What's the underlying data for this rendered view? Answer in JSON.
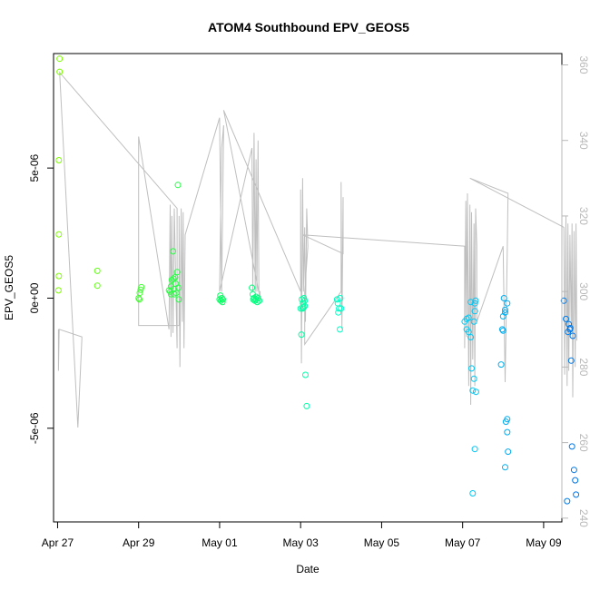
{
  "chart_data": {
    "type": "scatter",
    "title": "ATOM4 Southbound EPV_GEOS5",
    "xlabel": "Date",
    "ylabel": "EPV_GEOS5",
    "xlim": [
      -0.1,
      12.45
    ],
    "ylim": [
      -8.6e-06,
      9.4e-06
    ],
    "x_unit": "days since Apr 27",
    "x_ticks": [
      {
        "value": 0,
        "label": "Apr 27"
      },
      {
        "value": 2,
        "label": "Apr 29"
      },
      {
        "value": 4,
        "label": "May 01"
      },
      {
        "value": 6,
        "label": "May 03"
      },
      {
        "value": 8,
        "label": "May 05"
      },
      {
        "value": 10,
        "label": "May 07"
      },
      {
        "value": 12,
        "label": "May 09"
      }
    ],
    "y_ticks": [
      {
        "value": -5e-06,
        "label": "-5e-06"
      },
      {
        "value": 0,
        "label": "0e+00"
      },
      {
        "value": 5e-06,
        "label": "5e-06"
      }
    ],
    "right_axis": {
      "label": "",
      "lim": [
        239,
        363
      ],
      "ticks": [
        240,
        260,
        280,
        300,
        320,
        340,
        360
      ]
    },
    "color_gradient": [
      "#7fff00",
      "#00ff66",
      "#00ffff",
      "#0073e6"
    ],
    "series": [
      {
        "name": "EPV_GEOS5",
        "points": [
          [
            0.05,
            9.2e-06
          ],
          [
            0.05,
            8.7e-06
          ],
          [
            0.03,
            5.3e-06
          ],
          [
            0.03,
            2.45e-06
          ],
          [
            0.03,
            8.5e-07
          ],
          [
            0.02,
            3e-07
          ],
          [
            0.98,
            1.05e-06
          ],
          [
            0.98,
            4.8e-07
          ],
          [
            2.0,
            0
          ],
          [
            2.03,
            2e-07
          ],
          [
            2.05,
            3.2e-07
          ],
          [
            2.07,
            4.2e-07
          ],
          [
            2.02,
            -5e-08
          ],
          [
            2.75,
            3e-07
          ],
          [
            2.78,
            2.5e-07
          ],
          [
            2.8,
            4.5e-07
          ],
          [
            2.82,
            7e-07
          ],
          [
            2.85,
            1.8e-06
          ],
          [
            2.87,
            3.5e-07
          ],
          [
            2.88,
            1.5e-07
          ],
          [
            2.9,
            8e-07
          ],
          [
            2.92,
            5.5e-07
          ],
          [
            2.93,
            2e-07
          ],
          [
            2.95,
            1e-06
          ],
          [
            2.97,
            4.35e-06
          ],
          [
            2.98,
            4e-07
          ],
          [
            2.99,
            -5e-08
          ],
          [
            2.86,
            7.5e-07
          ],
          [
            2.8,
            1.5e-07
          ],
          [
            4.0,
            -5e-08
          ],
          [
            4.03,
            -1e-07
          ],
          [
            4.05,
            0
          ],
          [
            4.07,
            -1.5e-07
          ],
          [
            4.02,
            1e-07
          ],
          [
            4.08,
            -5e-08
          ],
          [
            4.8,
            4e-07
          ],
          [
            4.82,
            1.5e-07
          ],
          [
            4.85,
            0
          ],
          [
            4.87,
            -1e-07
          ],
          [
            4.9,
            5e-08
          ],
          [
            4.93,
            -1.5e-07
          ],
          [
            4.95,
            0
          ],
          [
            4.98,
            -1e-07
          ],
          [
            4.83,
            -5e-08
          ],
          [
            4.9,
            -5e-08
          ],
          [
            6.0,
            -4e-07
          ],
          [
            6.02,
            -1.4e-06
          ],
          [
            6.05,
            -4e-07
          ],
          [
            6.07,
            -3.5e-07
          ],
          [
            6.1,
            -1e-07
          ],
          [
            6.12,
            -2.95e-06
          ],
          [
            6.15,
            -4.15e-06
          ],
          [
            6.08,
            0
          ],
          [
            6.03,
            -5e-08
          ],
          [
            6.1,
            -3e-07
          ],
          [
            6.06,
            -2e-07
          ],
          [
            6.9,
            -5e-08
          ],
          [
            6.92,
            -2e-07
          ],
          [
            6.95,
            -4e-07
          ],
          [
            6.97,
            -1.2e-06
          ],
          [
            7.0,
            -4e-07
          ],
          [
            6.93,
            -5.5e-07
          ],
          [
            6.98,
            0
          ],
          [
            10.05,
            -9e-07
          ],
          [
            10.1,
            -8e-07
          ],
          [
            10.15,
            -7.5e-07
          ],
          [
            10.1,
            -1.2e-06
          ],
          [
            10.2,
            -1.5e-06
          ],
          [
            10.22,
            -2.7e-06
          ],
          [
            10.25,
            -3.55e-06
          ],
          [
            10.15,
            -1.3e-06
          ],
          [
            10.3,
            -5e-07
          ],
          [
            10.28,
            -3.1e-06
          ],
          [
            10.3,
            -5.8e-06
          ],
          [
            10.2,
            -1.5e-07
          ],
          [
            10.25,
            -7.5e-06
          ],
          [
            10.3,
            -2e-07
          ],
          [
            10.28,
            -9e-07
          ],
          [
            10.32,
            -1e-07
          ],
          [
            10.33,
            -3.6e-06
          ],
          [
            10.95,
            -2.55e-06
          ],
          [
            10.98,
            -1.2e-06
          ],
          [
            11.0,
            -7e-07
          ],
          [
            11.02,
            0
          ],
          [
            11.05,
            -4.5e-07
          ],
          [
            11.07,
            -4.75e-06
          ],
          [
            11.1,
            -4.65e-06
          ],
          [
            11.1,
            -5.15e-06
          ],
          [
            11.12,
            -5.9e-06
          ],
          [
            11.05,
            -6.5e-06
          ],
          [
            11.0,
            -1.25e-06
          ],
          [
            11.1,
            -2e-07
          ],
          [
            11.05,
            -5.5e-07
          ],
          [
            12.5,
            -1e-07
          ],
          [
            12.55,
            -8e-07
          ],
          [
            12.6,
            -1.3e-06
          ],
          [
            12.62,
            -1e-06
          ],
          [
            12.65,
            -1.2e-06
          ],
          [
            12.68,
            -2.4e-06
          ],
          [
            12.7,
            -5.7e-06
          ],
          [
            12.75,
            -6.6e-06
          ],
          [
            12.78,
            -7e-06
          ],
          [
            12.8,
            -7.55e-06
          ],
          [
            12.72,
            -1.45e-06
          ],
          [
            12.58,
            -7.8e-06
          ],
          [
            12.66,
            -1.15e-06
          ]
        ]
      }
    ],
    "track": {
      "name": "right-axis track",
      "color": "#bfbfbf",
      "spikes_axis": "right",
      "path": [
        [
          0.02,
          290
        ],
        [
          0.02,
          279
        ],
        [
          0.04,
          290
        ],
        [
          0.6,
          288
        ],
        [
          0.6,
          287.5
        ],
        [
          0.5,
          264
        ],
        [
          0.05,
          358
        ],
        [
          2.95,
          322
        ],
        [
          2.95,
          285
        ],
        [
          2.88,
          322
        ],
        [
          2.85,
          289
        ],
        [
          2.82,
          320
        ],
        [
          2.8,
          288
        ],
        [
          2.78,
          323
        ],
        [
          2.75,
          290
        ],
        [
          2.0,
          341
        ],
        [
          2.0,
          291
        ],
        [
          3.0,
          291
        ],
        [
          3.0,
          320
        ],
        [
          3.02,
          280
        ],
        [
          3.05,
          322
        ],
        [
          3.08,
          292
        ],
        [
          3.1,
          321
        ],
        [
          3.12,
          285
        ],
        [
          3.15,
          315
        ],
        [
          4.0,
          346
        ],
        [
          4.05,
          300
        ],
        [
          4.1,
          344
        ],
        [
          4.05,
          338
        ],
        [
          4.0,
          300
        ],
        [
          4.8,
          338
        ],
        [
          4.82,
          300
        ],
        [
          4.85,
          342
        ],
        [
          4.88,
          300
        ],
        [
          4.9,
          335
        ],
        [
          4.92,
          300
        ],
        [
          4.95,
          340
        ],
        [
          4.97,
          300
        ],
        [
          5.0,
          300
        ],
        [
          5.0,
          298
        ],
        [
          4.1,
          348
        ],
        [
          6.0,
          300
        ],
        [
          6.0,
          327
        ],
        [
          6.02,
          281
        ],
        [
          6.05,
          330
        ],
        [
          6.07,
          300
        ],
        [
          6.1,
          317
        ],
        [
          6.12,
          292
        ],
        [
          6.15,
          322
        ],
        [
          6.18,
          312
        ],
        [
          6.1,
          300
        ],
        [
          6.1,
          286
        ],
        [
          7.0,
          300
        ],
        [
          7.0,
          329
        ],
        [
          7.02,
          290
        ],
        [
          7.05,
          325
        ],
        [
          7.05,
          318
        ],
        [
          7.05,
          310
        ],
        [
          6.05,
          315
        ],
        [
          10.05,
          312
        ],
        [
          10.05,
          285
        ],
        [
          10.08,
          324
        ],
        [
          10.1,
          288
        ],
        [
          10.12,
          326
        ],
        [
          10.15,
          275
        ],
        [
          10.18,
          323
        ],
        [
          10.2,
          270
        ],
        [
          10.22,
          321
        ],
        [
          10.25,
          282
        ],
        [
          10.28,
          318
        ],
        [
          10.3,
          275
        ],
        [
          10.32,
          322
        ],
        [
          10.35,
          312
        ],
        [
          10.35,
          292
        ],
        [
          11.0,
          312
        ],
        [
          11.05,
          276
        ],
        [
          11.1,
          310
        ],
        [
          11.12,
          326
        ],
        [
          10.18,
          330
        ],
        [
          12.5,
          317
        ],
        [
          12.52,
          278
        ],
        [
          12.55,
          320
        ],
        [
          12.58,
          275
        ],
        [
          12.6,
          318
        ],
        [
          12.62,
          279
        ],
        [
          12.65,
          315
        ],
        [
          12.68,
          290
        ],
        [
          12.7,
          318
        ],
        [
          12.72,
          272
        ],
        [
          12.75,
          316
        ],
        [
          12.78,
          280
        ],
        [
          12.8,
          318
        ],
        [
          12.82,
          287
        ]
      ]
    }
  }
}
